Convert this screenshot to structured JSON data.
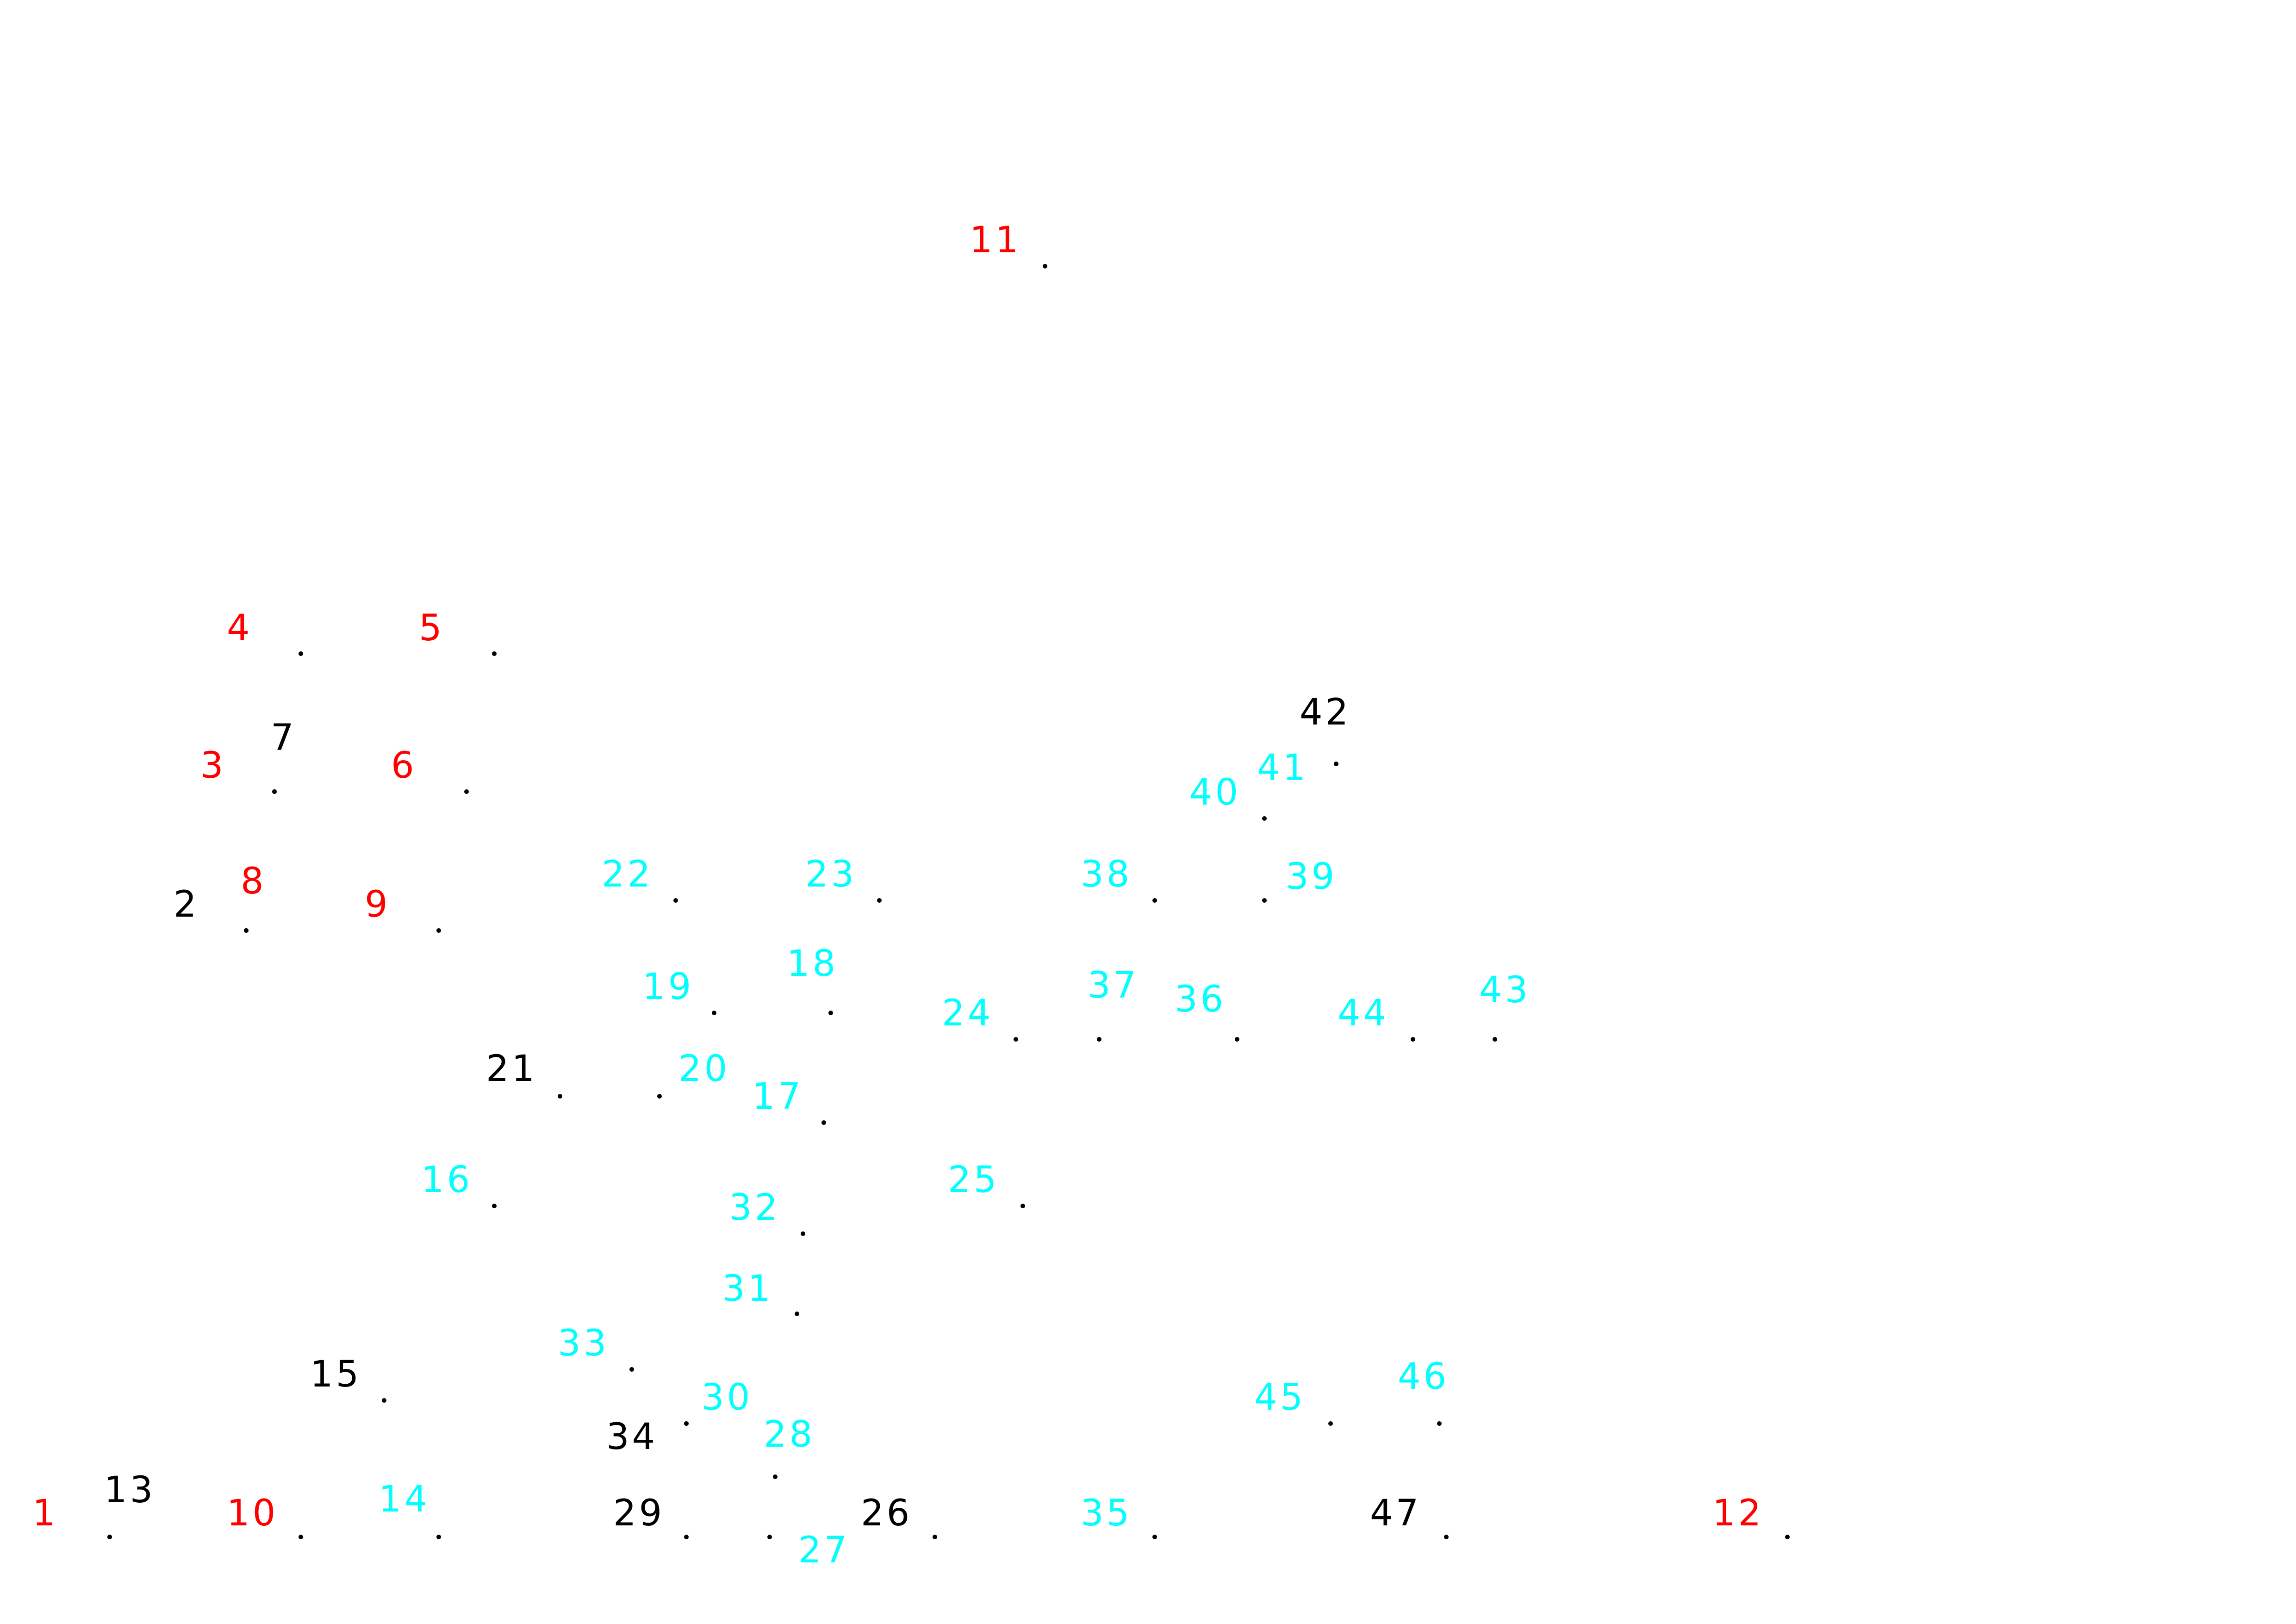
{
  "puzzle": {
    "colors": {
      "red": "#ff0000",
      "cyan": "#00ffff",
      "black": "#000000"
    },
    "points": [
      {
        "label": "1",
        "color": "red"
      },
      {
        "label": "2",
        "color": "black"
      },
      {
        "label": "3",
        "color": "red"
      },
      {
        "label": "4",
        "color": "red"
      },
      {
        "label": "5",
        "color": "red"
      },
      {
        "label": "6",
        "color": "red"
      },
      {
        "label": "7",
        "color": "black"
      },
      {
        "label": "8",
        "color": "red"
      },
      {
        "label": "9",
        "color": "red"
      },
      {
        "label": "10",
        "color": "red"
      },
      {
        "label": "11",
        "color": "red"
      },
      {
        "label": "12",
        "color": "red"
      },
      {
        "label": "13",
        "color": "black"
      },
      {
        "label": "14",
        "color": "cyan"
      },
      {
        "label": "15",
        "color": "black"
      },
      {
        "label": "16",
        "color": "cyan"
      },
      {
        "label": "17",
        "color": "cyan"
      },
      {
        "label": "18",
        "color": "cyan"
      },
      {
        "label": "19",
        "color": "cyan"
      },
      {
        "label": "20",
        "color": "cyan"
      },
      {
        "label": "21",
        "color": "black"
      },
      {
        "label": "22",
        "color": "cyan"
      },
      {
        "label": "23",
        "color": "cyan"
      },
      {
        "label": "24",
        "color": "cyan"
      },
      {
        "label": "25",
        "color": "cyan"
      },
      {
        "label": "26",
        "color": "black"
      },
      {
        "label": "27",
        "color": "cyan"
      },
      {
        "label": "28",
        "color": "cyan"
      },
      {
        "label": "29",
        "color": "black"
      },
      {
        "label": "30",
        "color": "cyan"
      },
      {
        "label": "31",
        "color": "cyan"
      },
      {
        "label": "32",
        "color": "cyan"
      },
      {
        "label": "33",
        "color": "cyan"
      },
      {
        "label": "34",
        "color": "black"
      },
      {
        "label": "35",
        "color": "cyan"
      },
      {
        "label": "36",
        "color": "cyan"
      },
      {
        "label": "37",
        "color": "cyan"
      },
      {
        "label": "38",
        "color": "cyan"
      },
      {
        "label": "39",
        "color": "cyan"
      },
      {
        "label": "40",
        "color": "cyan"
      },
      {
        "label": "41",
        "color": "cyan"
      },
      {
        "label": "42",
        "color": "black"
      },
      {
        "label": "43",
        "color": "cyan"
      },
      {
        "label": "44",
        "color": "cyan"
      },
      {
        "label": "45",
        "color": "cyan"
      },
      {
        "label": "46",
        "color": "cyan"
      },
      {
        "label": "47",
        "color": "black"
      }
    ]
  }
}
